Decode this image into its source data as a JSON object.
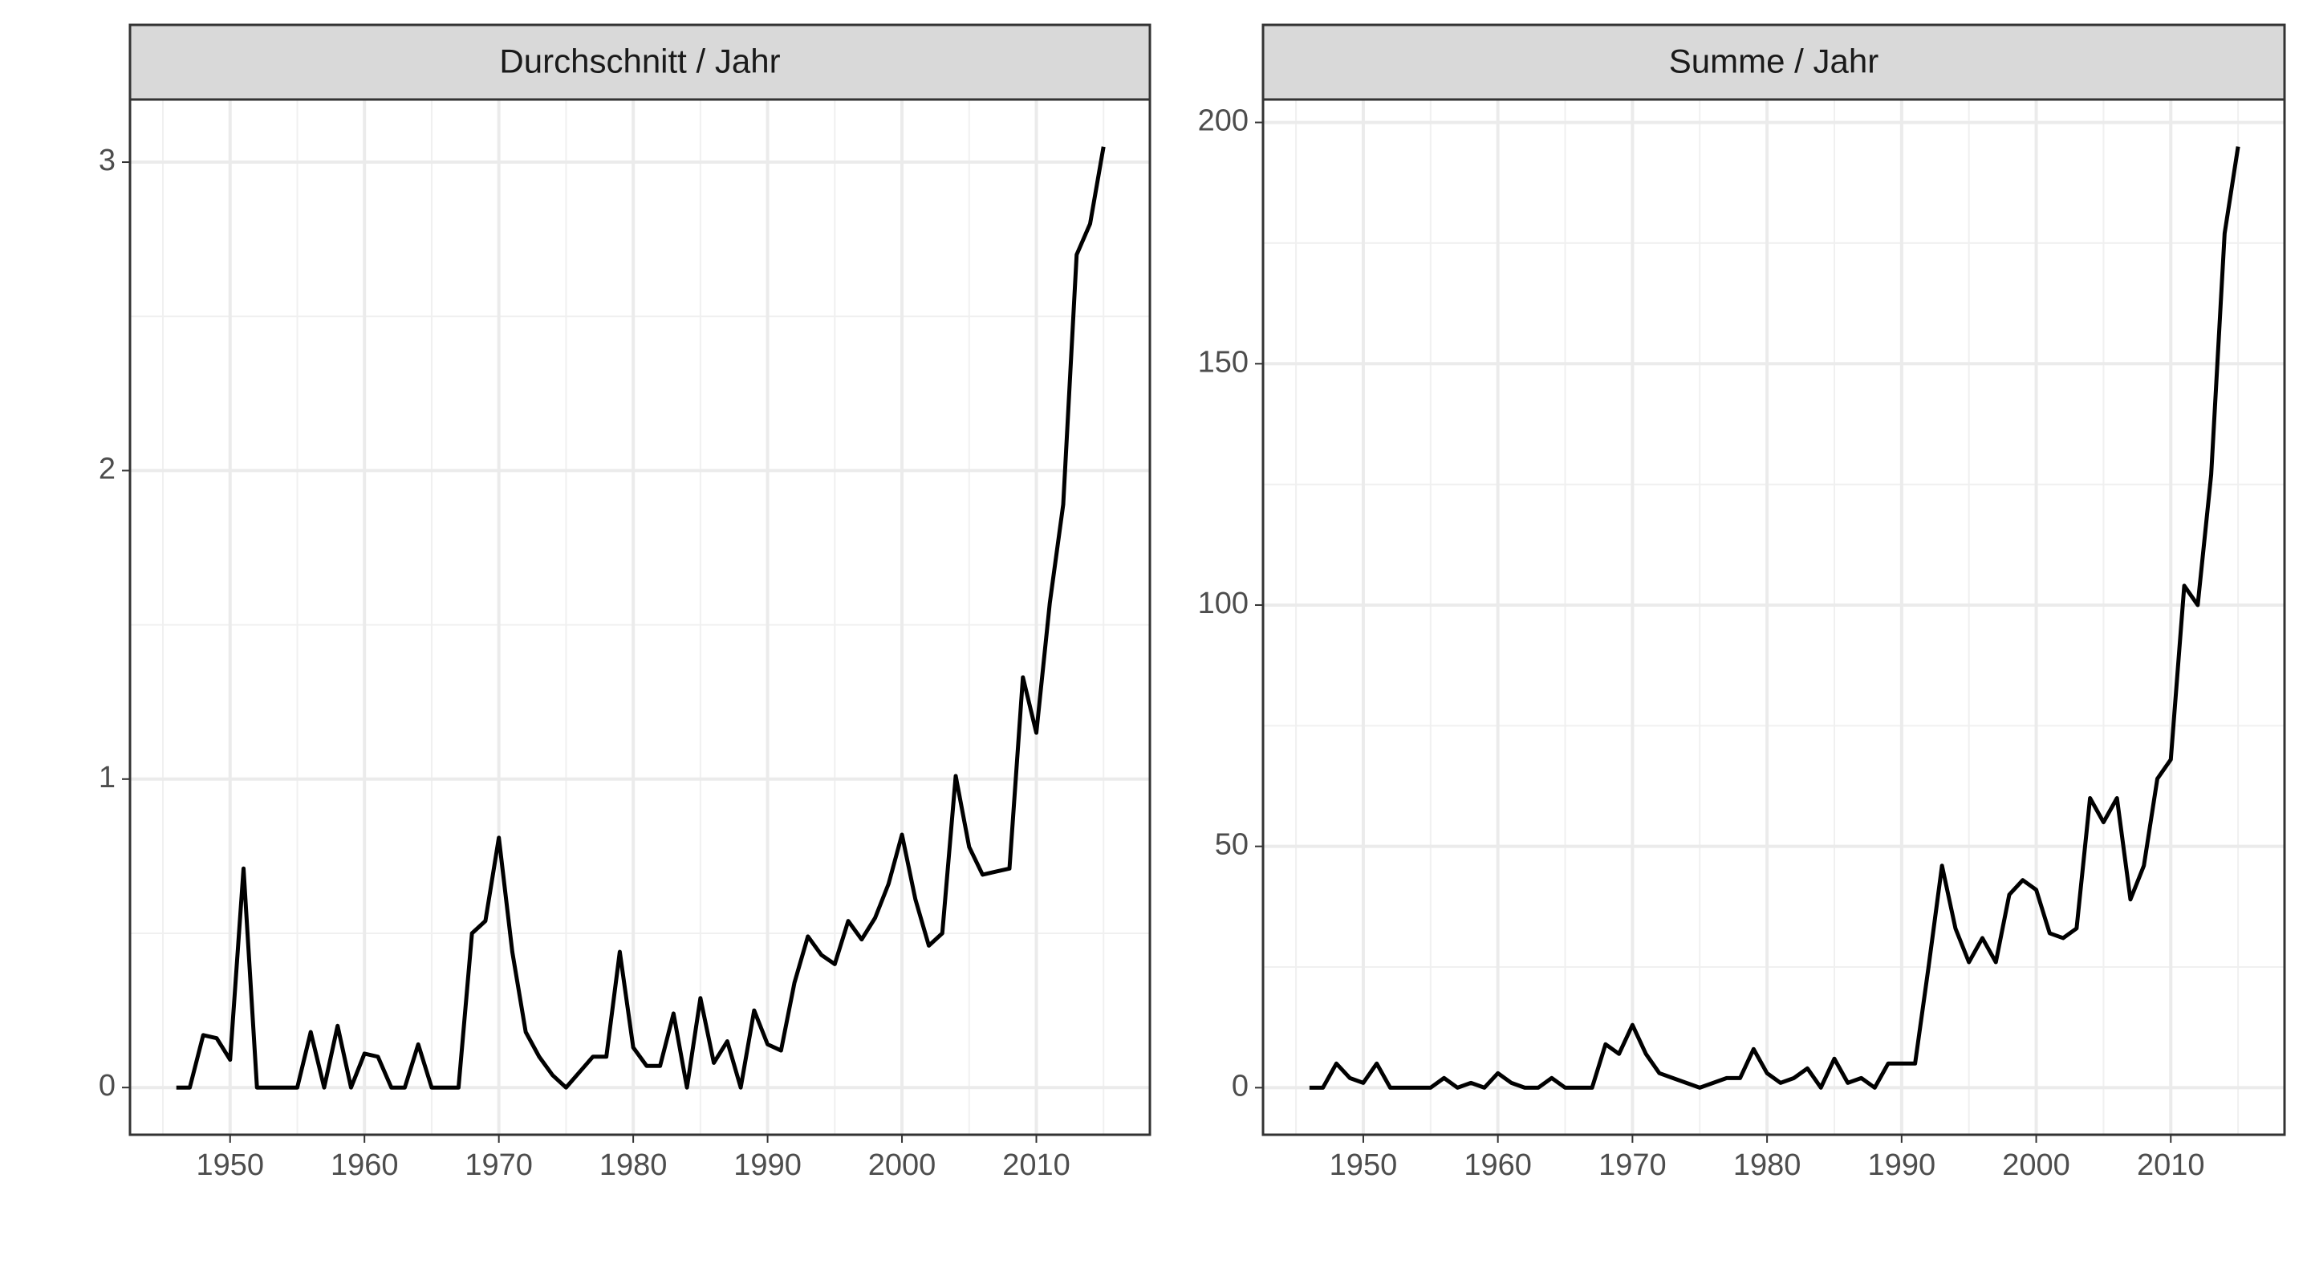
{
  "chart_data": [
    {
      "type": "line",
      "title": "Durchschnitt / Jahr",
      "x": [
        1946,
        1947,
        1948,
        1949,
        1950,
        1951,
        1952,
        1953,
        1954,
        1955,
        1956,
        1957,
        1958,
        1959,
        1960,
        1961,
        1962,
        1963,
        1964,
        1965,
        1966,
        1967,
        1968,
        1969,
        1970,
        1971,
        1972,
        1973,
        1974,
        1975,
        1976,
        1977,
        1978,
        1979,
        1980,
        1981,
        1982,
        1983,
        1984,
        1985,
        1986,
        1987,
        1988,
        1989,
        1990,
        1991,
        1992,
        1993,
        1994,
        1995,
        1996,
        1997,
        1998,
        1999,
        2000,
        2001,
        2002,
        2003,
        2004,
        2005,
        2006,
        2007,
        2008,
        2009,
        2010,
        2011,
        2012,
        2013,
        2014,
        2015
      ],
      "values": [
        0,
        0,
        0.17,
        0.16,
        0.09,
        0.71,
        0,
        0,
        0,
        0,
        0.18,
        0,
        0.2,
        0,
        0.11,
        0.1,
        0,
        0,
        0.14,
        0,
        0,
        0,
        0.5,
        0.54,
        0.81,
        0.44,
        0.18,
        0.1,
        0.04,
        0,
        0.05,
        0.1,
        0.1,
        0.44,
        0.13,
        0.07,
        0.07,
        0.24,
        0,
        0.29,
        0.08,
        0.15,
        0,
        0.25,
        0.14,
        0.12,
        0.34,
        0.49,
        0.43,
        0.4,
        0.54,
        0.48,
        0.55,
        0.66,
        0.82,
        0.61,
        0.46,
        0.5,
        1.01,
        0.78,
        0.69,
        0.7,
        0.71,
        1.33,
        1.15,
        1.57,
        1.89,
        2.7,
        2.8,
        3.05
      ],
      "color": "#000000",
      "xlim": [
        1942.55,
        2018.45
      ],
      "ylim": [
        -0.153,
        3.203
      ],
      "xticks": [
        1950,
        1960,
        1970,
        1980,
        1990,
        2000,
        2010
      ],
      "yticks": [
        0,
        1,
        2,
        3
      ],
      "grid": true
    },
    {
      "type": "line",
      "title": "Summe / Jahr",
      "x": [
        1946,
        1947,
        1948,
        1949,
        1950,
        1951,
        1952,
        1953,
        1954,
        1955,
        1956,
        1957,
        1958,
        1959,
        1960,
        1961,
        1962,
        1963,
        1964,
        1965,
        1966,
        1967,
        1968,
        1969,
        1970,
        1971,
        1972,
        1973,
        1974,
        1975,
        1976,
        1977,
        1978,
        1979,
        1980,
        1981,
        1982,
        1983,
        1984,
        1985,
        1986,
        1987,
        1988,
        1989,
        1990,
        1991,
        1992,
        1993,
        1994,
        1995,
        1996,
        1997,
        1998,
        1999,
        2000,
        2001,
        2002,
        2003,
        2004,
        2005,
        2006,
        2007,
        2008,
        2009,
        2010,
        2011,
        2012,
        2013,
        2014,
        2015
      ],
      "values": [
        0,
        0,
        5,
        2,
        1,
        5,
        0,
        0,
        0,
        0,
        2,
        0,
        1,
        0,
        3,
        1,
        0,
        0,
        2,
        0,
        0,
        0,
        9,
        7,
        13,
        7,
        3,
        2,
        1,
        0,
        1,
        2,
        2,
        8,
        3,
        1,
        2,
        4,
        0,
        6,
        1,
        2,
        0,
        5,
        5,
        5,
        25,
        46,
        33,
        26,
        31,
        26,
        40,
        43,
        41,
        32,
        31,
        33,
        60,
        55,
        60,
        39,
        46,
        64,
        68,
        104,
        100,
        127,
        177,
        195
      ],
      "color": "#000000",
      "xlim": [
        1942.55,
        2018.45
      ],
      "ylim": [
        -9.75,
        204.75
      ],
      "xticks": [
        1950,
        1960,
        1970,
        1980,
        1990,
        2000,
        2010
      ],
      "yticks": [
        0,
        50,
        100,
        150,
        200
      ],
      "grid": true
    }
  ]
}
